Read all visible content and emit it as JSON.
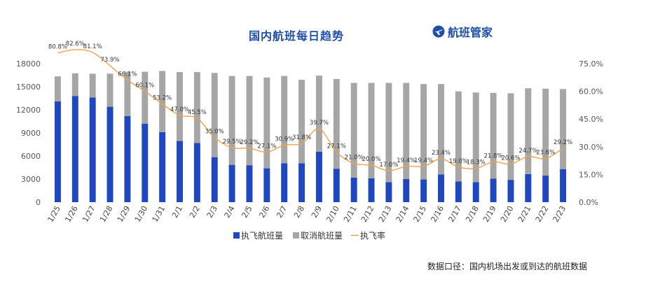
{
  "title": "国内航班每日趋势",
  "brand": {
    "name": "航班管家",
    "icon": "airplane-logo-icon"
  },
  "footnote": "数据口径：国内机场出发或到达的航班数据",
  "colors": {
    "executed": "#1f47bf",
    "cancelled": "#a6a6a6",
    "rate": "#f0a14a",
    "title": "#1f4fa8"
  },
  "chart_data": {
    "type": "bar",
    "stacked": true,
    "categories": [
      "1/25",
      "1/26",
      "1/27",
      "1/28",
      "1/29",
      "1/30",
      "1/31",
      "2/1",
      "2/2",
      "2/3",
      "2/4",
      "2/5",
      "2/6",
      "2/7",
      "2/8",
      "2/9",
      "2/10",
      "2/11",
      "2/12",
      "2/13",
      "2/14",
      "2/15",
      "2/16",
      "2/17",
      "2/18",
      "2/19",
      "2/20",
      "2/21",
      "2/22",
      "2/23"
    ],
    "series": [
      {
        "name": "执飞航班量",
        "kind": "bar",
        "axis": "left",
        "values": [
          13100,
          13800,
          13600,
          12400,
          11200,
          10200,
          9100,
          7950,
          7700,
          5850,
          4850,
          4800,
          4400,
          5050,
          5050,
          6550,
          4350,
          3200,
          3100,
          2600,
          3000,
          2950,
          3600,
          2700,
          2600,
          3050,
          2900,
          3650,
          3450,
          4300
        ]
      },
      {
        "name": "取消航班量",
        "kind": "bar",
        "axis": "left",
        "values": [
          3250,
          2950,
          3100,
          4300,
          5750,
          6750,
          7950,
          8950,
          9200,
          10950,
          11550,
          11600,
          11800,
          11350,
          10850,
          9900,
          11650,
          12300,
          12400,
          12900,
          12500,
          12400,
          11750,
          11700,
          11650,
          11150,
          11250,
          11150,
          11300,
          10400
        ]
      },
      {
        "name": "执飞率",
        "kind": "line",
        "axis": "right",
        "values": [
          80.8,
          82.6,
          81.1,
          73.9,
          66.1,
          60.1,
          53.2,
          47.0,
          45.5,
          35.0,
          29.5,
          29.2,
          27.1,
          30.9,
          31.8,
          39.7,
          27.1,
          21.0,
          20.0,
          17.0,
          19.4,
          19.4,
          23.4,
          19.0,
          18.3,
          21.8,
          20.6,
          24.7,
          23.6,
          29.2
        ],
        "labels": [
          "80.8%",
          "82.6%",
          "81.1%",
          "73.9%",
          "66.1%",
          "60.1%",
          "53.2%",
          "47.0%",
          "45.5%",
          "35.0%",
          "29.5%",
          "29.2%",
          "27.1%",
          "30.9%",
          "31.8%",
          "39.7%",
          "27.1%",
          "21.0%",
          "20.0%",
          "17.0%",
          "19.4%",
          "19.4%",
          "23.4%",
          "19.0%",
          "18.3%",
          "21.8%",
          "20.6%",
          "24.7%",
          "23.6%",
          "29.2%"
        ]
      }
    ],
    "y_left": {
      "min": 0,
      "max": 18000,
      "ticks": [
        "0",
        "3000",
        "6000",
        "9000",
        "12000",
        "15000",
        "18000"
      ]
    },
    "y_right": {
      "min": 0,
      "max": 75,
      "ticks": [
        "0.0%",
        "15.0%",
        "30.0%",
        "45.0%",
        "60.0%",
        "75.0%"
      ]
    },
    "legend": {
      "position": "bottom",
      "items": [
        "执飞航班量",
        "取消航班量",
        "执飞率"
      ]
    },
    "grid": false
  }
}
